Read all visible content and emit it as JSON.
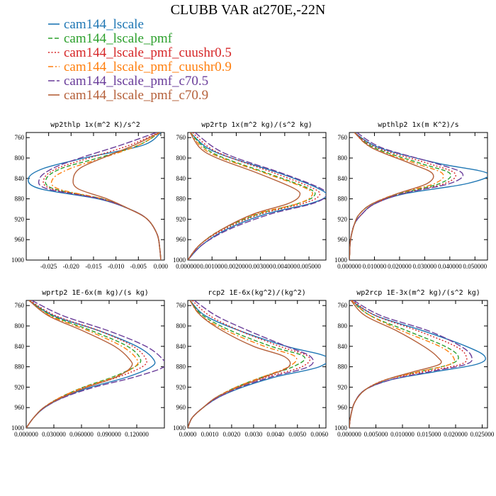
{
  "figure": {
    "title": "CLUBB VAR at270E,-22N"
  },
  "legend": [
    {
      "name": "cam144_lscale",
      "color": "#1f77b4",
      "dash": "solid"
    },
    {
      "name": "cam144_lscale_pmf",
      "color": "#2ca02c",
      "dash": "dash"
    },
    {
      "name": "cam144_lscale_pmf_cuushr0.5",
      "color": "#d62728",
      "dash": "dot"
    },
    {
      "name": "cam144_lscale_pmf_cuushr0.9",
      "color": "#ff7f0e",
      "dash": "dashdot"
    },
    {
      "name": "cam144_lscale_pmf_c70.5",
      "color": "#6a3d9a",
      "dash": "longdash"
    },
    {
      "name": "cam144_lscale_pmf_c70.9",
      "color": "#b5603a",
      "dash": "solid"
    }
  ],
  "chart_data": [
    {
      "type": "line",
      "title": "wp2thlp  1x(m^2 K)/s^2",
      "y": [
        750,
        775,
        800,
        820,
        840,
        860,
        880,
        900,
        920,
        950,
        980,
        1000
      ],
      "ylim": [
        1000,
        750
      ],
      "yticks": [
        760,
        800,
        840,
        880,
        920,
        960,
        1000
      ],
      "xlim": [
        -0.03,
        0.0008
      ],
      "xticks": [
        -0.025,
        -0.02,
        -0.015,
        -0.01,
        -0.005,
        0.0
      ],
      "xtick_labels": [
        "-0.025",
        "-0.020",
        "-0.015",
        "-0.010",
        "-0.005",
        "0.000"
      ],
      "series": [
        {
          "values": [
            0.0,
            -0.004,
            -0.017,
            -0.026,
            -0.0295,
            -0.027,
            -0.014,
            -0.007,
            -0.003,
            -0.0008,
            -0.0002,
            0.0
          ]
        },
        {
          "values": [
            -0.0002,
            -0.005,
            -0.014,
            -0.022,
            -0.0255,
            -0.024,
            -0.013,
            -0.007,
            -0.003,
            -0.0008,
            -0.0002,
            0.0
          ]
        },
        {
          "values": [
            -0.0005,
            -0.007,
            -0.016,
            -0.023,
            -0.026,
            -0.0245,
            -0.0135,
            -0.007,
            -0.003,
            -0.0008,
            -0.0002,
            0.0
          ]
        },
        {
          "values": [
            -0.0002,
            -0.005,
            -0.013,
            -0.02,
            -0.024,
            -0.023,
            -0.013,
            -0.007,
            -0.003,
            -0.0008,
            -0.0002,
            0.0
          ]
        },
        {
          "values": [
            -0.001,
            -0.009,
            -0.018,
            -0.024,
            -0.027,
            -0.0255,
            -0.0135,
            -0.007,
            -0.003,
            -0.0008,
            -0.0002,
            0.0
          ]
        },
        {
          "values": [
            -0.0003,
            -0.006,
            -0.013,
            -0.018,
            -0.0195,
            -0.0185,
            -0.012,
            -0.007,
            -0.003,
            -0.0008,
            -0.0002,
            0.0
          ]
        }
      ]
    },
    {
      "type": "line",
      "title": "wp2rtp  1x(m^2 kg)/(s^2 kg)",
      "y": [
        750,
        780,
        800,
        830,
        860,
        875,
        890,
        910,
        940,
        970,
        1000
      ],
      "ylim": [
        1000,
        750
      ],
      "yticks": [
        760,
        800,
        840,
        880,
        920,
        960,
        1000
      ],
      "xlim": [
        0,
        0.0057
      ],
      "xticks": [
        0.0,
        0.001,
        0.002,
        0.003,
        0.004,
        0.005
      ],
      "xtick_labels": [
        "0.000000",
        "0.001000",
        "0.002000",
        "0.003000",
        "0.004000",
        "0.005000"
      ],
      "series": [
        {
          "values": [
            0.0001,
            0.0008,
            0.0018,
            0.0038,
            0.0054,
            0.0057,
            0.005,
            0.0032,
            0.0016,
            0.0006,
            0.0
          ]
        },
        {
          "values": [
            0.0001,
            0.0007,
            0.0015,
            0.0033,
            0.005,
            0.0052,
            0.0045,
            0.0029,
            0.0014,
            0.0005,
            0.0
          ]
        },
        {
          "values": [
            0.0002,
            0.0009,
            0.0018,
            0.0036,
            0.0052,
            0.0054,
            0.0047,
            0.003,
            0.0015,
            0.0005,
            0.0
          ]
        },
        {
          "values": [
            0.0001,
            0.0006,
            0.0014,
            0.0032,
            0.0049,
            0.0051,
            0.0045,
            0.0028,
            0.0014,
            0.0005,
            0.0
          ]
        },
        {
          "values": [
            0.0003,
            0.0011,
            0.002,
            0.0039,
            0.0055,
            0.0057,
            0.0051,
            0.0034,
            0.0017,
            0.0006,
            0.0
          ]
        },
        {
          "values": [
            0.0001,
            0.0005,
            0.0012,
            0.0029,
            0.0044,
            0.0046,
            0.0041,
            0.0027,
            0.0014,
            0.0005,
            0.0
          ]
        }
      ]
    },
    {
      "type": "line",
      "title": "wpthlp2  1x(m K^2)/s",
      "y": [
        750,
        780,
        810,
        830,
        850,
        870,
        890,
        910,
        930,
        960,
        990,
        1000
      ],
      "ylim": [
        1000,
        750
      ],
      "yticks": [
        760,
        800,
        840,
        880,
        920,
        960,
        1000
      ],
      "xlim": [
        0,
        0.055
      ],
      "xticks": [
        0.0,
        0.01,
        0.02,
        0.03,
        0.04,
        0.05
      ],
      "xtick_labels": [
        "0.000000",
        "0.010000",
        "0.020000",
        "0.030000",
        "0.040000",
        "0.050000"
      ],
      "series": [
        {
          "values": [
            0.002,
            0.012,
            0.035,
            0.055,
            0.047,
            0.022,
            0.01,
            0.005,
            0.002,
            0.0005,
            0.0001,
            0.0
          ]
        },
        {
          "values": [
            0.002,
            0.01,
            0.028,
            0.04,
            0.036,
            0.02,
            0.009,
            0.004,
            0.002,
            0.0005,
            0.0001,
            0.0
          ]
        },
        {
          "values": [
            0.002,
            0.011,
            0.031,
            0.042,
            0.038,
            0.021,
            0.01,
            0.005,
            0.002,
            0.0005,
            0.0001,
            0.0
          ]
        },
        {
          "values": [
            0.002,
            0.009,
            0.026,
            0.037,
            0.034,
            0.019,
            0.009,
            0.004,
            0.002,
            0.0005,
            0.0001,
            0.0
          ]
        },
        {
          "values": [
            0.003,
            0.013,
            0.034,
            0.045,
            0.04,
            0.021,
            0.01,
            0.005,
            0.002,
            0.0005,
            0.0001,
            0.0
          ]
        },
        {
          "values": [
            0.002,
            0.009,
            0.024,
            0.033,
            0.031,
            0.019,
            0.009,
            0.004,
            0.002,
            0.0005,
            0.0001,
            0.0
          ]
        }
      ]
    },
    {
      "type": "line",
      "title": "wprtp2  1E-6x(m kg)/(s kg)",
      "y": [
        750,
        780,
        810,
        840,
        865,
        880,
        900,
        920,
        940,
        960,
        980,
        1000
      ],
      "ylim": [
        1000,
        750
      ],
      "yticks": [
        760,
        800,
        840,
        880,
        920,
        960,
        1000
      ],
      "xlim": [
        0,
        0.15
      ],
      "xticks": [
        0.0,
        0.03,
        0.06,
        0.09,
        0.12
      ],
      "xtick_labels": [
        "0.000000",
        "0.030000",
        "0.060000",
        "0.090000",
        "0.120000"
      ],
      "series": [
        {
          "values": [
            0.003,
            0.03,
            0.08,
            0.12,
            0.138,
            0.136,
            0.11,
            0.07,
            0.04,
            0.02,
            0.008,
            0.0
          ]
        },
        {
          "values": [
            0.003,
            0.028,
            0.072,
            0.11,
            0.124,
            0.118,
            0.094,
            0.062,
            0.037,
            0.019,
            0.008,
            0.0
          ]
        },
        {
          "values": [
            0.004,
            0.032,
            0.08,
            0.116,
            0.13,
            0.126,
            0.1,
            0.065,
            0.038,
            0.019,
            0.008,
            0.0
          ]
        },
        {
          "values": [
            0.003,
            0.026,
            0.068,
            0.104,
            0.12,
            0.118,
            0.096,
            0.063,
            0.037,
            0.019,
            0.008,
            0.0
          ]
        },
        {
          "values": [
            0.006,
            0.04,
            0.09,
            0.13,
            0.148,
            0.15,
            0.118,
            0.074,
            0.041,
            0.02,
            0.008,
            0.0
          ]
        },
        {
          "values": [
            0.003,
            0.024,
            0.062,
            0.096,
            0.112,
            0.114,
            0.098,
            0.066,
            0.039,
            0.019,
            0.008,
            0.0
          ]
        }
      ]
    },
    {
      "type": "line",
      "title": "rcp2  1E-6x(kg^2)/(kg^2)",
      "y": [
        750,
        780,
        810,
        840,
        860,
        880,
        900,
        920,
        940,
        960,
        980,
        1000
      ],
      "ylim": [
        1000,
        750
      ],
      "yticks": [
        760,
        800,
        840,
        880,
        920,
        960,
        1000
      ],
      "xlim": [
        0,
        0.0063
      ],
      "xticks": [
        0.0,
        0.001,
        0.002,
        0.003,
        0.004,
        0.005,
        0.006
      ],
      "xtick_labels": [
        "0.0000",
        "0.0010",
        "0.0020",
        "0.0030",
        "0.0040",
        "0.0050",
        "0.0060"
      ],
      "series": [
        {
          "values": [
            0.0001,
            0.0008,
            0.0024,
            0.0045,
            0.0063,
            0.006,
            0.004,
            0.0025,
            0.0014,
            0.0007,
            0.0002,
            0.0
          ]
        },
        {
          "values": [
            0.0001,
            0.0007,
            0.002,
            0.0038,
            0.0053,
            0.0048,
            0.0034,
            0.0022,
            0.0013,
            0.0007,
            0.0002,
            0.0
          ]
        },
        {
          "values": [
            0.0002,
            0.001,
            0.0024,
            0.0042,
            0.0055,
            0.0052,
            0.0036,
            0.0023,
            0.0013,
            0.0007,
            0.0002,
            0.0
          ]
        },
        {
          "values": [
            0.0001,
            0.0006,
            0.0018,
            0.0035,
            0.0049,
            0.0046,
            0.0034,
            0.0022,
            0.0013,
            0.0007,
            0.0002,
            0.0
          ]
        },
        {
          "values": [
            0.0003,
            0.0013,
            0.0028,
            0.0045,
            0.0056,
            0.0055,
            0.0038,
            0.0024,
            0.0014,
            0.0007,
            0.0002,
            0.0
          ]
        },
        {
          "values": [
            0.0001,
            0.0006,
            0.0016,
            0.003,
            0.0044,
            0.0046,
            0.0035,
            0.0023,
            0.0013,
            0.0007,
            0.0002,
            0.0
          ]
        }
      ]
    },
    {
      "type": "line",
      "title": "wp2rcp  1E-3x(m^2 kg)/(s^2 kg)",
      "y": [
        750,
        780,
        810,
        840,
        860,
        875,
        890,
        905,
        925,
        950,
        980,
        1000
      ],
      "ylim": [
        1000,
        750
      ],
      "yticks": [
        760,
        800,
        840,
        880,
        920,
        960,
        1000
      ],
      "xlim": [
        0,
        0.026
      ],
      "xticks": [
        0.0,
        0.005,
        0.01,
        0.015,
        0.02,
        0.025
      ],
      "xtick_labels": [
        "0.000000",
        "0.005000",
        "0.010000",
        "0.015000",
        "0.020000",
        "0.025000"
      ],
      "series": [
        {
          "values": [
            0.0003,
            0.005,
            0.014,
            0.022,
            0.0255,
            0.024,
            0.016,
            0.008,
            0.003,
            0.001,
            0.0002,
            0.0
          ]
        },
        {
          "values": [
            0.0003,
            0.004,
            0.011,
            0.018,
            0.0205,
            0.019,
            0.013,
            0.007,
            0.003,
            0.001,
            0.0002,
            0.0
          ]
        },
        {
          "values": [
            0.0005,
            0.005,
            0.013,
            0.02,
            0.022,
            0.021,
            0.014,
            0.007,
            0.003,
            0.001,
            0.0002,
            0.0
          ]
        },
        {
          "values": [
            0.0003,
            0.004,
            0.01,
            0.017,
            0.0195,
            0.019,
            0.013,
            0.007,
            0.003,
            0.001,
            0.0002,
            0.0
          ]
        },
        {
          "values": [
            0.0008,
            0.006,
            0.015,
            0.021,
            0.023,
            0.022,
            0.015,
            0.008,
            0.003,
            0.001,
            0.0002,
            0.0
          ]
        },
        {
          "values": [
            0.0003,
            0.003,
            0.009,
            0.014,
            0.0165,
            0.017,
            0.012,
            0.007,
            0.003,
            0.001,
            0.0002,
            0.0
          ]
        }
      ]
    }
  ]
}
